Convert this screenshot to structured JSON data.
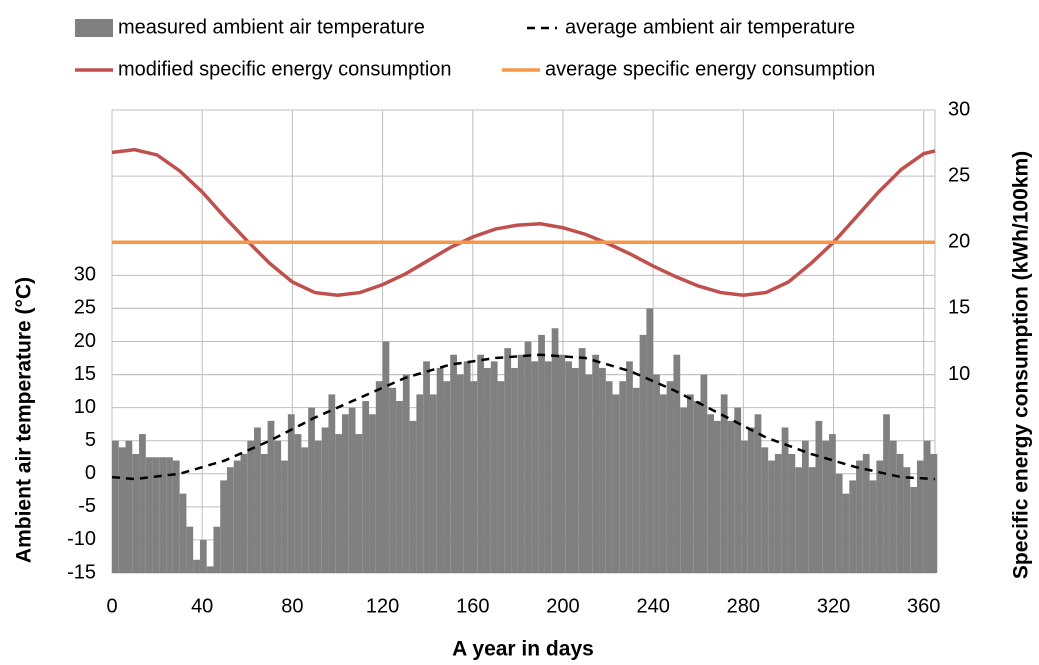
{
  "chart_data": {
    "type": "bar-line",
    "xlabel": "A year in days",
    "ylabel": "Ambient air temperature  (°C)",
    "y2label": "Specific energy consumption (kWh/100km)",
    "xlim": [
      0,
      365
    ],
    "xticks": [
      0,
      40,
      80,
      120,
      160,
      200,
      240,
      280,
      320,
      360
    ],
    "ylim": [
      -15,
      55
    ],
    "yticks": [
      -15,
      -10,
      -5,
      0,
      5,
      10,
      15,
      20,
      25,
      30
    ],
    "y2lim": [
      -5,
      30
    ],
    "y2ticks": [
      10,
      15,
      20,
      25,
      30
    ],
    "grid": true,
    "series": [
      {
        "name": "measured ambient air temperature",
        "type": "bar",
        "color": "#808080",
        "x": [
          0,
          3,
          6,
          9,
          12,
          15,
          18,
          21,
          24,
          27,
          30,
          33,
          36,
          39,
          42,
          45,
          48,
          51,
          54,
          57,
          60,
          63,
          66,
          69,
          72,
          75,
          78,
          81,
          84,
          87,
          90,
          93,
          96,
          99,
          102,
          105,
          108,
          111,
          114,
          117,
          120,
          123,
          126,
          129,
          132,
          135,
          138,
          141,
          144,
          147,
          150,
          153,
          156,
          159,
          162,
          165,
          168,
          171,
          174,
          177,
          180,
          183,
          186,
          189,
          192,
          195,
          198,
          201,
          204,
          207,
          210,
          213,
          216,
          219,
          222,
          225,
          228,
          231,
          234,
          237,
          240,
          243,
          246,
          249,
          252,
          255,
          258,
          261,
          264,
          267,
          270,
          273,
          276,
          279,
          282,
          285,
          288,
          291,
          294,
          297,
          300,
          303,
          306,
          309,
          312,
          315,
          318,
          321,
          324,
          327,
          330,
          333,
          336,
          339,
          342,
          345,
          348,
          351,
          354,
          357,
          360,
          363
        ],
        "values": [
          5,
          4,
          5,
          3,
          6,
          2.5,
          2.5,
          2.5,
          2.5,
          2,
          -3,
          -8,
          -13,
          -10,
          -14,
          -8,
          -1,
          1,
          2,
          3,
          5,
          7,
          3,
          8,
          5,
          2,
          9,
          6,
          4,
          10,
          5,
          7,
          12,
          6,
          9,
          10,
          6,
          11,
          9,
          14,
          20,
          13,
          11,
          15,
          8,
          12,
          17,
          12,
          16,
          14,
          18,
          15,
          17,
          14,
          18,
          16,
          17,
          14,
          19,
          16,
          18,
          20,
          17,
          21,
          17,
          22,
          18,
          17,
          16,
          19,
          15,
          18,
          16,
          14,
          12,
          14,
          17,
          13,
          21,
          25,
          15,
          12,
          14,
          18,
          10,
          12,
          11,
          15,
          9,
          8,
          12,
          8,
          10,
          5,
          7,
          9,
          4,
          2,
          3,
          7,
          3,
          1,
          5,
          1,
          8,
          5,
          6,
          0,
          -3,
          -1,
          2,
          3,
          -1,
          2,
          9,
          5,
          3,
          1,
          -2,
          2,
          5,
          3
        ]
      },
      {
        "name": "average ambient air temperature",
        "type": "line",
        "dash": true,
        "color": "#000000",
        "x": [
          0,
          10,
          30,
          50,
          70,
          90,
          110,
          130,
          150,
          170,
          190,
          210,
          230,
          250,
          270,
          290,
          310,
          330,
          350,
          365
        ],
        "values": [
          -0.5,
          -0.8,
          0,
          2,
          5,
          8.5,
          11.5,
          14.5,
          16.5,
          17.5,
          18,
          17.5,
          15.5,
          12.5,
          9,
          5.5,
          3,
          1,
          -0.5,
          -0.8
        ]
      },
      {
        "name": "modified specific energy consumption",
        "type": "line",
        "axis": "y2",
        "color": "#c0504d",
        "x": [
          0,
          10,
          20,
          30,
          40,
          50,
          60,
          70,
          80,
          90,
          100,
          110,
          120,
          130,
          140,
          150,
          160,
          170,
          180,
          190,
          200,
          210,
          220,
          230,
          240,
          250,
          260,
          270,
          280,
          290,
          300,
          310,
          320,
          330,
          340,
          350,
          360,
          365
        ],
        "values": [
          26.8,
          27,
          26.6,
          25.4,
          23.8,
          21.9,
          20.1,
          18.4,
          17,
          16.2,
          16,
          16.2,
          16.8,
          17.6,
          18.6,
          19.6,
          20.4,
          21,
          21.3,
          21.4,
          21.1,
          20.6,
          19.9,
          19.1,
          18.2,
          17.4,
          16.7,
          16.2,
          16,
          16.2,
          17,
          18.4,
          20,
          21.9,
          23.8,
          25.5,
          26.7,
          26.9
        ]
      },
      {
        "name": "average specific energy consumption",
        "type": "line",
        "axis": "y2",
        "color": "#f79646",
        "x": [
          0,
          365
        ],
        "values": [
          20,
          20
        ]
      }
    ]
  }
}
